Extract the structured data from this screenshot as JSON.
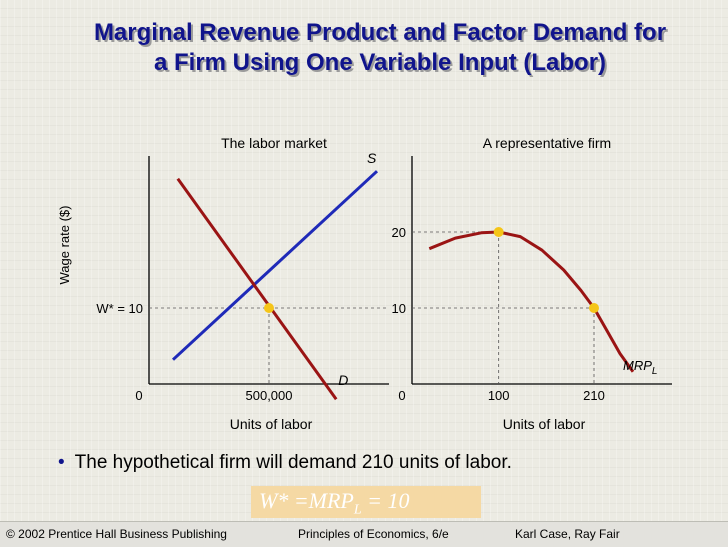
{
  "title": {
    "line1": "Marginal Revenue Product and Factor Demand for",
    "line2": "a Firm Using One Variable Input (Labor)"
  },
  "bullet": "The hypothetical firm will demand 210 units of labor.",
  "formula": {
    "left": "W* =MRP",
    "sub": "L",
    "right": " = 10"
  },
  "footer": {
    "left": "© 2002 Prentice Hall Business Publishing",
    "center": "Principles of Economics, 6/e",
    "right": "Karl Case, Ray Fair"
  },
  "colors": {
    "title": "#10148c",
    "demand": "#9a1414",
    "supply": "#1f2ab8",
    "point": "#f5c518"
  },
  "chart_data": [
    {
      "type": "line",
      "title": "The labor market",
      "xlabel": "Units of labor",
      "ylabel": "Wage rate ($)",
      "xlim": [
        0,
        1000000
      ],
      "ylim": [
        0,
        30
      ],
      "origin_label": "0",
      "x_ticks": [
        {
          "value": 500000,
          "label": "500,000"
        }
      ],
      "y_ticks": [
        {
          "value": 10,
          "label": "W* = 10"
        }
      ],
      "series": [
        {
          "name": "S",
          "points": [
            [
              100000,
              3.2
            ],
            [
              950000,
              28
            ]
          ]
        },
        {
          "name": "D",
          "points": [
            [
              120000,
              27
            ],
            [
              780000,
              -2
            ]
          ]
        }
      ],
      "equilibrium": {
        "x": 500000,
        "y": 10
      }
    },
    {
      "type": "line",
      "title": "A representative firm",
      "xlabel": "Units of labor",
      "xlim": [
        0,
        300
      ],
      "ylim": [
        0,
        30
      ],
      "origin_label": "0",
      "x_ticks": [
        {
          "value": 100,
          "label": "100"
        },
        {
          "value": 210,
          "label": "210"
        }
      ],
      "y_ticks": [
        {
          "value": 20,
          "label": "20"
        },
        {
          "value": 10,
          "label": "10"
        }
      ],
      "series": [
        {
          "name": "MRP",
          "name_sub": "L",
          "points": [
            [
              20,
              17.8
            ],
            [
              50,
              19.2
            ],
            [
              80,
              19.9
            ],
            [
              100,
              20
            ],
            [
              125,
              19.4
            ],
            [
              150,
              17.6
            ],
            [
              175,
              15
            ],
            [
              195,
              12.3
            ],
            [
              210,
              10
            ],
            [
              225,
              7
            ],
            [
              240,
              4
            ],
            [
              255,
              1.6
            ]
          ]
        }
      ],
      "marked_points": [
        [
          100,
          20
        ],
        [
          210,
          10
        ]
      ]
    }
  ]
}
